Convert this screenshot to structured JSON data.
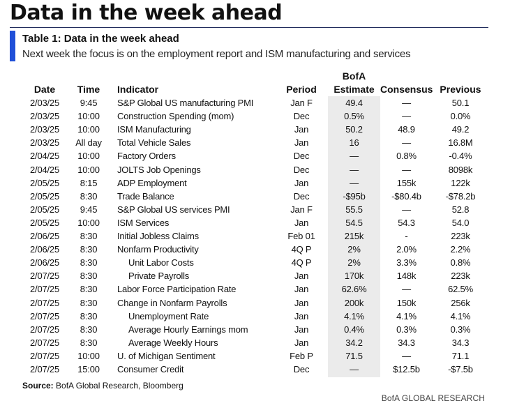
{
  "page": {
    "title": "Data in the week ahead"
  },
  "table": {
    "title": "Table 1: Data in the week ahead",
    "subtitle": "Next week the focus is on the employment report and ISM manufacturing and services",
    "headers": {
      "date": "Date",
      "time": "Time",
      "indicator": "Indicator",
      "period": "Period",
      "bofa_line1": "BofA",
      "bofa_line2": "Estimate",
      "consensus": "Consensus",
      "previous": "Previous"
    },
    "rows": [
      {
        "date": "2/03/25",
        "time": "9:45",
        "indicator": "S&P Global US manufacturing PMI",
        "indent": false,
        "period": "Jan F",
        "estimate": "49.4",
        "consensus": "—",
        "previous": "50.1"
      },
      {
        "date": "2/03/25",
        "time": "10:00",
        "indicator": "Construction Spending (mom)",
        "indent": false,
        "period": "Dec",
        "estimate": "0.5%",
        "consensus": "—",
        "previous": "0.0%"
      },
      {
        "date": "2/03/25",
        "time": "10:00",
        "indicator": "ISM Manufacturing",
        "indent": false,
        "period": "Jan",
        "estimate": "50.2",
        "consensus": "48.9",
        "previous": "49.2"
      },
      {
        "date": "2/03/25",
        "time": "All day",
        "indicator": "Total Vehicle Sales",
        "indent": false,
        "period": "Jan",
        "estimate": "16",
        "consensus": "—",
        "previous": "16.8M"
      },
      {
        "date": "2/04/25",
        "time": "10:00",
        "indicator": "Factory Orders",
        "indent": false,
        "period": "Dec",
        "estimate": "—",
        "consensus": "0.8%",
        "previous": "-0.4%"
      },
      {
        "date": "2/04/25",
        "time": "10:00",
        "indicator": "JOLTS Job Openings",
        "indent": false,
        "period": "Dec",
        "estimate": "—",
        "consensus": "—",
        "previous": "8098k"
      },
      {
        "date": "2/05/25",
        "time": "8:15",
        "indicator": "ADP Employment",
        "indent": false,
        "period": "Jan",
        "estimate": "—",
        "consensus": "155k",
        "previous": "122k"
      },
      {
        "date": "2/05/25",
        "time": "8:30",
        "indicator": "Trade Balance",
        "indent": false,
        "period": "Dec",
        "estimate": "-$95b",
        "consensus": "-$80.4b",
        "previous": "-$78.2b"
      },
      {
        "date": "2/05/25",
        "time": "9:45",
        "indicator": "S&P Global US services PMI",
        "indent": false,
        "period": "Jan F",
        "estimate": "55.5",
        "consensus": "—",
        "previous": "52.8"
      },
      {
        "date": "2/05/25",
        "time": "10:00",
        "indicator": "ISM Services",
        "indent": false,
        "period": "Jan",
        "estimate": "54.5",
        "consensus": "54.3",
        "previous": "54.0"
      },
      {
        "date": "2/06/25",
        "time": "8:30",
        "indicator": "Initial Jobless Claims",
        "indent": false,
        "period": "Feb 01",
        "estimate": "215k",
        "consensus": "-",
        "previous": "223k"
      },
      {
        "date": "2/06/25",
        "time": "8:30",
        "indicator": "Nonfarm Productivity",
        "indent": false,
        "period": "4Q P",
        "estimate": "2%",
        "consensus": "2.0%",
        "previous": "2.2%"
      },
      {
        "date": "2/06/25",
        "time": "8:30",
        "indicator": "Unit Labor Costs",
        "indent": true,
        "period": "4Q P",
        "estimate": "2%",
        "consensus": "3.3%",
        "previous": "0.8%"
      },
      {
        "date": "2/07/25",
        "time": "8:30",
        "indicator": "Private Payrolls",
        "indent": true,
        "period": "Jan",
        "estimate": "170k",
        "consensus": "148k",
        "previous": "223k"
      },
      {
        "date": "2/07/25",
        "time": "8:30",
        "indicator": "Labor Force Participation Rate",
        "indent": false,
        "period": "Jan",
        "estimate": "62.6%",
        "consensus": "—",
        "previous": "62.5%"
      },
      {
        "date": "2/07/25",
        "time": "8:30",
        "indicator": "Change in Nonfarm Payrolls",
        "indent": false,
        "period": "Jan",
        "estimate": "200k",
        "consensus": "150k",
        "previous": "256k"
      },
      {
        "date": "2/07/25",
        "time": "8:30",
        "indicator": "Unemployment Rate",
        "indent": true,
        "period": "Jan",
        "estimate": "4.1%",
        "consensus": "4.1%",
        "previous": "4.1%"
      },
      {
        "date": "2/07/25",
        "time": "8:30",
        "indicator": "Average Hourly Earnings mom",
        "indent": true,
        "period": "Jan",
        "estimate": "0.4%",
        "consensus": "0.3%",
        "previous": "0.3%"
      },
      {
        "date": "2/07/25",
        "time": "8:30",
        "indicator": "Average Weekly Hours",
        "indent": true,
        "period": "Jan",
        "estimate": "34.2",
        "consensus": "34.3",
        "previous": "34.3"
      },
      {
        "date": "2/07/25",
        "time": "10:00",
        "indicator": "U. of Michigan Sentiment",
        "indent": false,
        "period": "Feb P",
        "estimate": "71.5",
        "consensus": "—",
        "previous": "71.1"
      },
      {
        "date": "2/07/25",
        "time": "15:00",
        "indicator": "Consumer Credit",
        "indent": false,
        "period": "Dec",
        "estimate": "—",
        "consensus": "$12.5b",
        "previous": "-$7.5b"
      }
    ]
  },
  "source": {
    "label": "Source:",
    "text": " BofA Global Research, Bloomberg"
  },
  "footer": {
    "brand": "BofA GLOBAL RESEARCH"
  },
  "colors": {
    "accent_bar": "#1f4fd8",
    "estimate_shade": "#ebebeb"
  }
}
